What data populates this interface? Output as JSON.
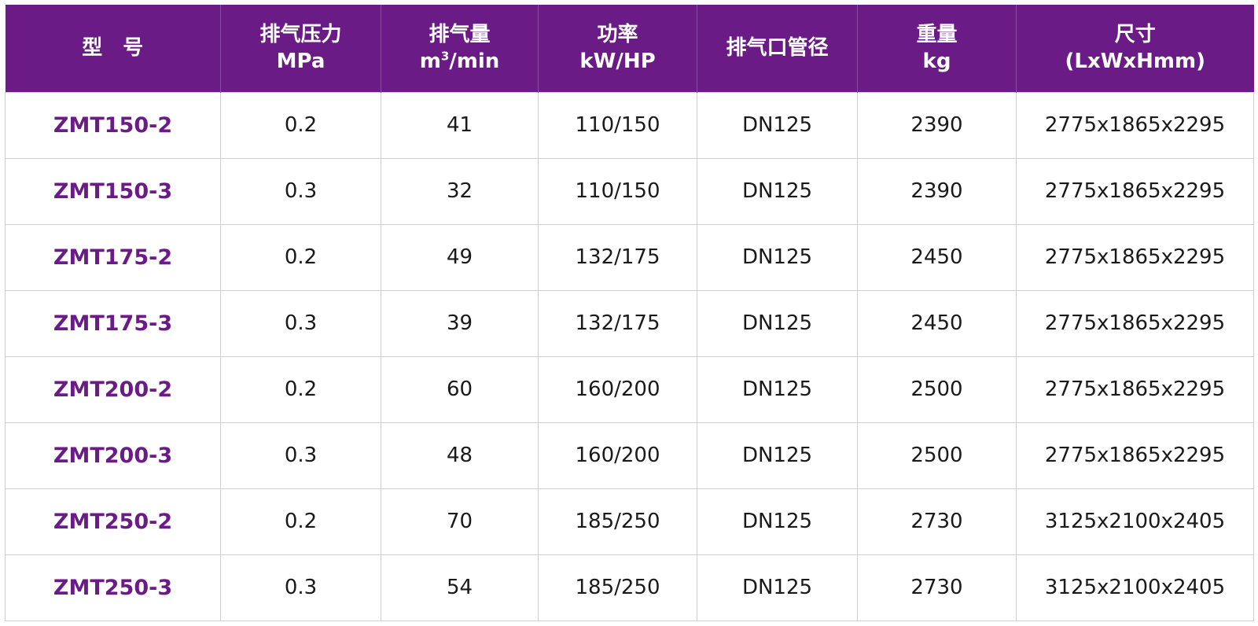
{
  "table": {
    "headers": [
      {
        "line1": "型　号",
        "line2": ""
      },
      {
        "line1": "排气压力",
        "line2": "MPa"
      },
      {
        "line1": "排气量",
        "line2_base": "m",
        "line2_sup": "3",
        "line2_rest": "/min"
      },
      {
        "line1": "功率",
        "line2": "kW/HP"
      },
      {
        "line1": "排气口管径",
        "line2": ""
      },
      {
        "line1": "重量",
        "line2": "kg"
      },
      {
        "line1": "尺寸",
        "line2": "(LxWxHmm)"
      }
    ],
    "rows": [
      [
        "ZMT150-2",
        "0.2",
        "41",
        "110/150",
        "DN125",
        "2390",
        "2775x1865x2295"
      ],
      [
        "ZMT150-3",
        "0.3",
        "32",
        "110/150",
        "DN125",
        "2390",
        "2775x1865x2295"
      ],
      [
        "ZMT175-2",
        "0.2",
        "49",
        "132/175",
        "DN125",
        "2450",
        "2775x1865x2295"
      ],
      [
        "ZMT175-3",
        "0.3",
        "39",
        "132/175",
        "DN125",
        "2450",
        "2775x1865x2295"
      ],
      [
        "ZMT200-2",
        "0.2",
        "60",
        "160/200",
        "DN125",
        "2500",
        "2775x1865x2295"
      ],
      [
        "ZMT200-3",
        "0.3",
        "48",
        "160/200",
        "DN125",
        "2500",
        "2775x1865x2295"
      ],
      [
        "ZMT250-2",
        "0.2",
        "70",
        "185/250",
        "DN125",
        "2730",
        "3125x2100x2405"
      ],
      [
        "ZMT250-3",
        "0.3",
        "54",
        "185/250",
        "DN125",
        "2730",
        "3125x2100x2405"
      ]
    ]
  },
  "colors": {
    "header_background": "#6a1b86",
    "header_text": "#ffffff",
    "model_text": "#6a1b86",
    "body_text": "#1a1a1a",
    "grid_line": "#cfcfcf"
  }
}
